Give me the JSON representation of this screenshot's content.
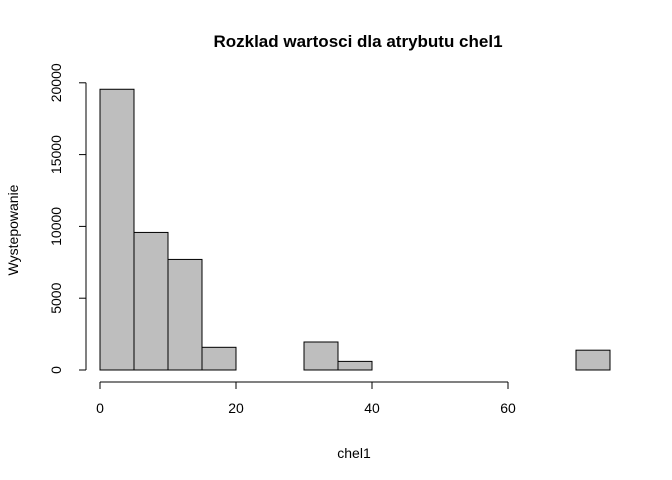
{
  "chart_data": {
    "type": "bar",
    "title": "Rozklad wartosci dla atrybutu chel1",
    "xlabel": "chel1",
    "ylabel": "Wystepowanie",
    "bins": [
      {
        "from": 0,
        "to": 5,
        "count": 19550
      },
      {
        "from": 5,
        "to": 10,
        "count": 9580
      },
      {
        "from": 10,
        "to": 15,
        "count": 7700
      },
      {
        "from": 15,
        "to": 20,
        "count": 1580
      },
      {
        "from": 20,
        "to": 25,
        "count": 0
      },
      {
        "from": 25,
        "to": 30,
        "count": 0
      },
      {
        "from": 30,
        "to": 35,
        "count": 1950
      },
      {
        "from": 35,
        "to": 40,
        "count": 600
      },
      {
        "from": 40,
        "to": 45,
        "count": 0
      },
      {
        "from": 45,
        "to": 50,
        "count": 0
      },
      {
        "from": 50,
        "to": 55,
        "count": 0
      },
      {
        "from": 55,
        "to": 60,
        "count": 0
      },
      {
        "from": 60,
        "to": 65,
        "count": 0
      },
      {
        "from": 65,
        "to": 70,
        "count": 0
      },
      {
        "from": 70,
        "to": 75,
        "count": 1380
      }
    ],
    "x_ticks": [
      0,
      20,
      40,
      60
    ],
    "y_ticks": [
      0,
      5000,
      10000,
      15000,
      20000
    ],
    "xlim": [
      0,
      75
    ],
    "ylim": [
      0,
      20000
    ],
    "bar_color": "#bebebe"
  }
}
